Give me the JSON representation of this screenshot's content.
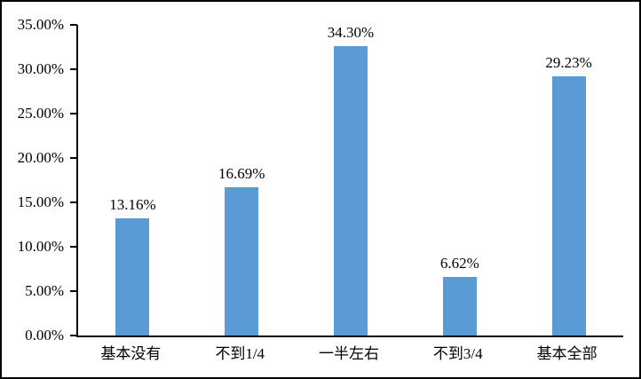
{
  "chart_data": {
    "type": "bar",
    "title": "",
    "xlabel": "",
    "ylabel": "",
    "categories": [
      "基本没有",
      "不到1/4",
      "一半左右",
      "不到3/4",
      "基本全部"
    ],
    "values": [
      13.16,
      16.69,
      34.3,
      6.62,
      29.23
    ],
    "value_labels": [
      "13.16%",
      "16.69%",
      "34.30%",
      "6.62%",
      "29.23%"
    ],
    "y_ticks": [
      "0.00%",
      "5.00%",
      "10.00%",
      "15.00%",
      "20.00%",
      "25.00%",
      "30.00%",
      "35.00%"
    ],
    "ylim": [
      0,
      35
    ],
    "grid": false,
    "legend": "none",
    "bar_color": "#5B9BD5",
    "axis_color": "#000000",
    "frame_border_color": "#000000",
    "background_color": "#FFFFFF"
  }
}
